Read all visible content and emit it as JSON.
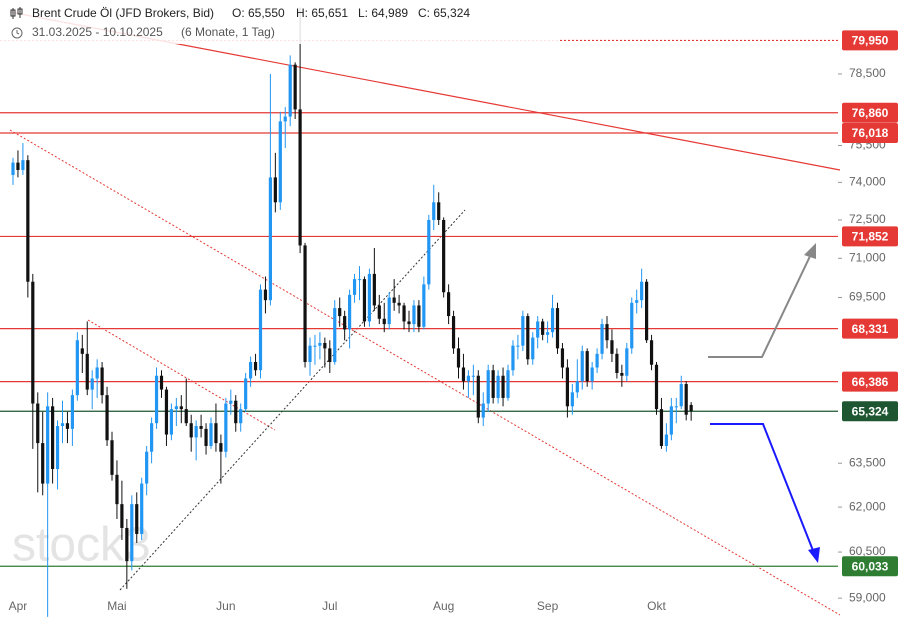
{
  "chart_data": {
    "type": "candlestick",
    "title": "Brent Crude Öl (JFD Brokers, Bid)",
    "header_values": [
      "O: 65,550",
      "H: 65,651",
      "L: 64,989",
      "C: 65,324"
    ],
    "period": "31.03.2025 - 10.10.2025",
    "period_note": "(6 Monate, 1 Tag)",
    "watermark": "stock3",
    "up_color": "#2196f3",
    "down_color": "#111111",
    "log_scale": true,
    "ylim": [
      58.62,
      81.73
    ],
    "yticks": [
      {
        "value": 59,
        "label": "59,000"
      },
      {
        "value": 60.5,
        "label": "60,500"
      },
      {
        "value": 62,
        "label": "62,000"
      },
      {
        "value": 63.5,
        "label": "63,500"
      },
      {
        "value": 69.5,
        "label": "69,500"
      },
      {
        "value": 71,
        "label": "71,000"
      },
      {
        "value": 72.5,
        "label": "72,500"
      },
      {
        "value": 74,
        "label": "74,000"
      },
      {
        "value": 75.5,
        "label": "75,500"
      },
      {
        "value": 78.5,
        "label": "78,500"
      }
    ],
    "levels": [
      {
        "value": 79.95,
        "label": "79,950",
        "color": "#e53935",
        "style": "dotted"
      },
      {
        "value": 76.86,
        "label": "76,860",
        "color": "#e53935",
        "style": "solid"
      },
      {
        "value": 76.018,
        "label": "76,018",
        "color": "#e53935",
        "style": "solid"
      },
      {
        "value": 71.852,
        "label": "71,852",
        "color": "#e53935",
        "style": "solid"
      },
      {
        "value": 68.331,
        "label": "68,331",
        "color": "#e53935",
        "style": "solid"
      },
      {
        "value": 66.386,
        "label": "66,386",
        "color": "#e53935",
        "style": "solid"
      },
      {
        "value": 65.324,
        "label": "65,324",
        "color": "#1e5631",
        "style": "solid"
      },
      {
        "value": 60.033,
        "label": "60,033",
        "color": "#2e7d32",
        "style": "solid"
      }
    ],
    "categories": [
      null,
      "Apr",
      null,
      null,
      null,
      null,
      null,
      null,
      null,
      null,
      null,
      null,
      null,
      null,
      null,
      null,
      null,
      null,
      null,
      null,
      null,
      "Mai",
      null,
      null,
      null,
      null,
      null,
      null,
      null,
      null,
      null,
      null,
      null,
      null,
      null,
      null,
      null,
      null,
      null,
      null,
      null,
      null,
      null,
      "Jun",
      null,
      null,
      null,
      null,
      null,
      null,
      null,
      null,
      null,
      null,
      null,
      null,
      null,
      null,
      null,
      null,
      null,
      null,
      null,
      null,
      "Jul",
      null,
      null,
      null,
      null,
      null,
      null,
      null,
      null,
      null,
      null,
      null,
      null,
      null,
      null,
      null,
      null,
      null,
      null,
      null,
      null,
      null,
      null,
      "Aug",
      null,
      null,
      null,
      null,
      null,
      null,
      null,
      null,
      null,
      null,
      null,
      null,
      null,
      null,
      null,
      null,
      null,
      null,
      null,
      null,
      "Sep",
      null,
      null,
      null,
      null,
      null,
      null,
      null,
      null,
      null,
      null,
      null,
      null,
      null,
      null,
      null,
      null,
      null,
      null,
      null,
      null,
      null,
      "Okt",
      null,
      null,
      null,
      null,
      null,
      null,
      null
    ],
    "ohlc": [
      [
        74.3,
        75.0,
        73.9,
        74.8
      ],
      [
        74.8,
        75.3,
        74.2,
        74.5
      ],
      [
        74.5,
        75.6,
        74.3,
        74.9
      ],
      [
        74.9,
        75.1,
        69.5,
        70.1
      ],
      [
        70.1,
        70.4,
        64.0,
        65.6
      ],
      [
        65.6,
        66.0,
        62.5,
        64.2
      ],
      [
        64.2,
        65.3,
        62.4,
        62.8
      ],
      [
        62.8,
        66.0,
        58.4,
        65.5
      ],
      [
        65.5,
        65.8,
        62.8,
        63.3
      ],
      [
        63.3,
        65.0,
        62.6,
        64.8
      ],
      [
        64.8,
        65.7,
        64.2,
        64.9
      ],
      [
        64.9,
        65.3,
        64.2,
        64.7
      ],
      [
        64.7,
        66.1,
        64.1,
        65.9
      ],
      [
        65.9,
        68.2,
        65.7,
        67.9
      ],
      [
        67.6,
        68.1,
        66.7,
        67.4
      ],
      [
        67.4,
        68.6,
        65.9,
        66.1
      ],
      [
        66.1,
        66.8,
        65.4,
        66.5
      ],
      [
        66.5,
        67.2,
        65.8,
        66.9
      ],
      [
        66.9,
        67.1,
        65.6,
        65.9
      ],
      [
        65.9,
        66.2,
        64.1,
        64.3
      ],
      [
        64.3,
        64.6,
        62.9,
        63.1
      ],
      [
        63.1,
        63.6,
        61.6,
        62.1
      ],
      [
        62.1,
        62.9,
        60.9,
        61.3
      ],
      [
        61.3,
        61.6,
        59.3,
        60.2
      ],
      [
        60.2,
        62.4,
        59.9,
        62.1
      ],
      [
        62.1,
        62.5,
        60.8,
        61.1
      ],
      [
        61.1,
        63.0,
        60.9,
        62.8
      ],
      [
        62.8,
        64.1,
        62.4,
        63.9
      ],
      [
        63.9,
        65.1,
        63.5,
        64.9
      ],
      [
        64.9,
        66.9,
        64.7,
        66.6
      ],
      [
        66.6,
        66.8,
        65.8,
        66.1
      ],
      [
        66.1,
        66.2,
        64.1,
        64.5
      ],
      [
        64.5,
        65.6,
        64.3,
        65.4
      ],
      [
        65.4,
        65.8,
        64.8,
        65.5
      ],
      [
        65.5,
        65.9,
        64.9,
        65.4
      ],
      [
        65.4,
        66.5,
        64.8,
        64.9
      ],
      [
        64.9,
        65.2,
        63.9,
        64.4
      ],
      [
        64.4,
        65.0,
        63.6,
        64.8
      ],
      [
        64.8,
        65.2,
        64.4,
        64.7
      ],
      [
        64.7,
        64.9,
        63.8,
        64.1
      ],
      [
        64.1,
        65.1,
        64.0,
        64.9
      ],
      [
        64.9,
        65.6,
        63.9,
        64.2
      ],
      [
        64.2,
        64.5,
        62.8,
        63.9
      ],
      [
        63.9,
        65.8,
        63.7,
        65.6
      ],
      [
        65.6,
        66.1,
        65.2,
        65.7
      ],
      [
        65.7,
        65.9,
        64.6,
        64.9
      ],
      [
        64.9,
        65.6,
        64.6,
        65.4
      ],
      [
        65.4,
        66.7,
        65.3,
        66.5
      ],
      [
        66.5,
        67.3,
        66.2,
        67.1
      ],
      [
        67.1,
        67.4,
        66.6,
        66.8
      ],
      [
        66.8,
        70.0,
        66.5,
        69.8
      ],
      [
        69.8,
        70.3,
        68.9,
        69.4
      ],
      [
        69.4,
        78.5,
        69.2,
        74.2
      ],
      [
        74.2,
        75.2,
        72.8,
        73.2
      ],
      [
        73.2,
        76.9,
        72.9,
        76.5
      ],
      [
        76.5,
        77.1,
        75.4,
        76.7
      ],
      [
        76.7,
        79.3,
        76.3,
        78.9
      ],
      [
        78.9,
        79.0,
        76.6,
        77.0
      ],
      [
        77.0,
        81.4,
        71.2,
        71.5
      ],
      [
        71.5,
        71.6,
        66.9,
        67.1
      ],
      [
        67.1,
        68.0,
        66.6,
        67.7
      ],
      [
        67.7,
        68.1,
        67.0,
        67.7
      ],
      [
        67.7,
        68.2,
        67.2,
        67.8
      ],
      [
        67.8,
        68.0,
        66.9,
        67.6
      ],
      [
        67.6,
        67.9,
        66.7,
        67.1
      ],
      [
        67.1,
        69.4,
        67.0,
        69.1
      ],
      [
        69.1,
        69.5,
        68.4,
        68.8
      ],
      [
        68.8,
        69.0,
        67.9,
        68.3
      ],
      [
        68.3,
        69.8,
        67.6,
        69.6
      ],
      [
        69.6,
        70.4,
        69.3,
        70.2
      ],
      [
        70.2,
        70.7,
        69.4,
        70.2
      ],
      [
        70.2,
        70.3,
        68.4,
        68.6
      ],
      [
        68.6,
        70.6,
        68.4,
        70.4
      ],
      [
        70.4,
        71.4,
        69.0,
        69.2
      ],
      [
        69.2,
        69.6,
        68.5,
        68.7
      ],
      [
        68.7,
        69.3,
        68.2,
        68.5
      ],
      [
        68.5,
        69.7,
        68.3,
        69.5
      ],
      [
        69.5,
        70.2,
        69.0,
        69.3
      ],
      [
        69.3,
        69.6,
        68.9,
        69.2
      ],
      [
        69.2,
        69.3,
        68.3,
        68.6
      ],
      [
        68.6,
        69.0,
        68.2,
        68.5
      ],
      [
        68.5,
        69.4,
        68.2,
        69.2
      ],
      [
        69.2,
        69.4,
        68.2,
        68.4
      ],
      [
        68.4,
        70.3,
        68.3,
        70.0
      ],
      [
        70.0,
        72.7,
        69.8,
        72.5
      ],
      [
        72.5,
        73.9,
        72.1,
        73.2
      ],
      [
        73.2,
        73.6,
        72.3,
        72.5
      ],
      [
        72.5,
        72.6,
        69.5,
        69.7
      ],
      [
        69.7,
        70.0,
        68.5,
        68.8
      ],
      [
        68.8,
        69.0,
        67.4,
        67.6
      ],
      [
        67.6,
        68.0,
        66.5,
        66.9
      ],
      [
        66.9,
        67.4,
        66.1,
        66.4
      ],
      [
        66.4,
        66.8,
        65.8,
        66.6
      ],
      [
        66.6,
        67.0,
        65.9,
        66.6
      ],
      [
        66.6,
        66.8,
        64.9,
        65.1
      ],
      [
        65.1,
        66.0,
        64.8,
        65.6
      ],
      [
        65.6,
        67.0,
        65.3,
        66.8
      ],
      [
        66.8,
        67.0,
        65.6,
        65.8
      ],
      [
        65.8,
        66.8,
        65.6,
        66.6
      ],
      [
        66.6,
        66.9,
        65.5,
        65.8
      ],
      [
        65.8,
        67.0,
        65.7,
        66.8
      ],
      [
        66.8,
        67.9,
        66.6,
        67.7
      ],
      [
        67.7,
        68.1,
        67.2,
        67.7
      ],
      [
        67.7,
        69.0,
        67.5,
        68.8
      ],
      [
        68.8,
        68.9,
        67.0,
        67.2
      ],
      [
        67.2,
        68.2,
        67.0,
        68.0
      ],
      [
        68.0,
        68.8,
        67.6,
        68.6
      ],
      [
        68.6,
        68.7,
        67.9,
        68.1
      ],
      [
        68.1,
        68.6,
        67.8,
        68.2
      ],
      [
        68.2,
        69.6,
        68.0,
        69.1
      ],
      [
        69.1,
        69.3,
        67.4,
        67.6
      ],
      [
        67.6,
        67.8,
        66.5,
        66.9
      ],
      [
        66.9,
        67.2,
        65.1,
        65.5
      ],
      [
        65.5,
        66.3,
        65.2,
        66.0
      ],
      [
        66.0,
        67.2,
        65.8,
        66.4
      ],
      [
        66.4,
        67.7,
        66.1,
        67.5
      ],
      [
        67.5,
        67.6,
        66.2,
        66.4
      ],
      [
        66.4,
        67.1,
        66.1,
        66.9
      ],
      [
        66.9,
        67.6,
        66.7,
        67.4
      ],
      [
        67.4,
        68.7,
        67.2,
        68.5
      ],
      [
        68.5,
        68.8,
        67.6,
        67.9
      ],
      [
        67.9,
        68.3,
        67.1,
        67.4
      ],
      [
        67.4,
        67.6,
        66.5,
        66.7
      ],
      [
        66.7,
        67.0,
        66.2,
        66.6
      ],
      [
        66.6,
        67.8,
        66.4,
        67.6
      ],
      [
        67.6,
        69.5,
        67.4,
        69.3
      ],
      [
        69.3,
        69.8,
        68.9,
        69.4
      ],
      [
        69.4,
        70.6,
        69.1,
        70.1
      ],
      [
        70.1,
        70.2,
        67.8,
        67.9
      ],
      [
        67.9,
        68.1,
        66.8,
        67.0
      ],
      [
        67.0,
        67.1,
        65.2,
        65.4
      ],
      [
        65.4,
        65.8,
        64.0,
        64.1
      ],
      [
        64.1,
        64.9,
        63.9,
        64.5
      ],
      [
        64.5,
        65.8,
        64.3,
        65.5
      ],
      [
        65.5,
        65.8,
        64.9,
        65.5
      ],
      [
        65.5,
        66.6,
        65.4,
        66.3
      ],
      [
        66.3,
        66.4,
        65.0,
        65.2
      ],
      [
        65.55,
        65.651,
        64.989,
        65.324
      ]
    ]
  }
}
